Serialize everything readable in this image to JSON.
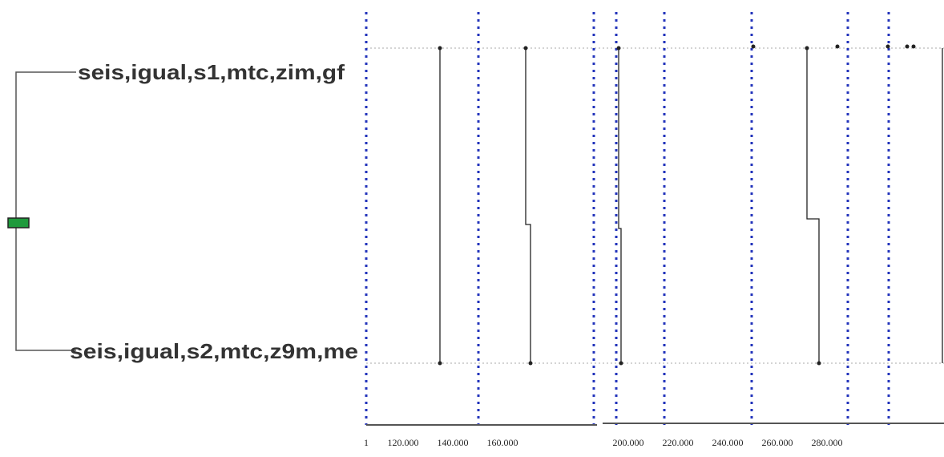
{
  "tree": {
    "labels": [
      "seis,igual,s1,mtc,zim,gf",
      "seis,igual,s2,mtc,z9m,me"
    ]
  },
  "axis": {
    "tick_labels": [
      "1",
      "120.000",
      "140.000",
      "160.000",
      "200.000",
      "220.000",
      "240.000",
      "260.000",
      "280.000"
    ]
  }
}
